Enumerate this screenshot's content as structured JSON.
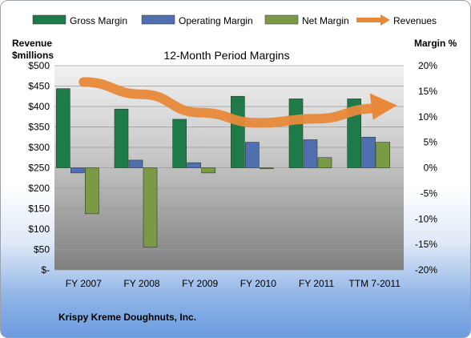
{
  "chart_data": {
    "type": "bar",
    "title": "12-Month Period Margins",
    "categories": [
      "FY 2007",
      "FY 2008",
      "FY 2009",
      "FY 2010",
      "FY 2011",
      "TTM 7-2011"
    ],
    "series": [
      {
        "name": "Gross Margin",
        "axis": "right",
        "color": "#1f7a4a",
        "values": [
          15.5,
          11.5,
          9.5,
          14.0,
          13.5,
          13.5
        ]
      },
      {
        "name": "Operating Margin",
        "axis": "right",
        "color": "#4f6fae",
        "values": [
          -1.0,
          1.5,
          1.0,
          5.0,
          5.5,
          6.0
        ]
      },
      {
        "name": "Net Margin",
        "axis": "right",
        "color": "#7a9a45",
        "values": [
          -9.0,
          -15.5,
          -1.0,
          0.0,
          2.0,
          5.0
        ]
      },
      {
        "name": "Revenues",
        "axis": "left",
        "type": "line",
        "color": "#e8893a",
        "values": [
          460,
          430,
          385,
          360,
          370,
          395
        ]
      }
    ],
    "left_axis": {
      "label_line1": "Revenue",
      "label_line2": "$millions",
      "min": 0,
      "max": 500,
      "step": 50,
      "ticks": [
        "$500",
        "$450",
        "$400",
        "$350",
        "$300",
        "$250",
        "$200",
        "$150",
        "$100",
        "$50",
        "$-"
      ]
    },
    "right_axis": {
      "label": "Margin %",
      "min": -20,
      "max": 20,
      "step": 5,
      "ticks": [
        "20%",
        "15%",
        "10%",
        "5%",
        "0%",
        "-5%",
        "-10%",
        "-15%",
        "-20%"
      ]
    },
    "legend_position": "top",
    "grid": true,
    "footnote": "Krispy Kreme Doughnuts, Inc."
  }
}
